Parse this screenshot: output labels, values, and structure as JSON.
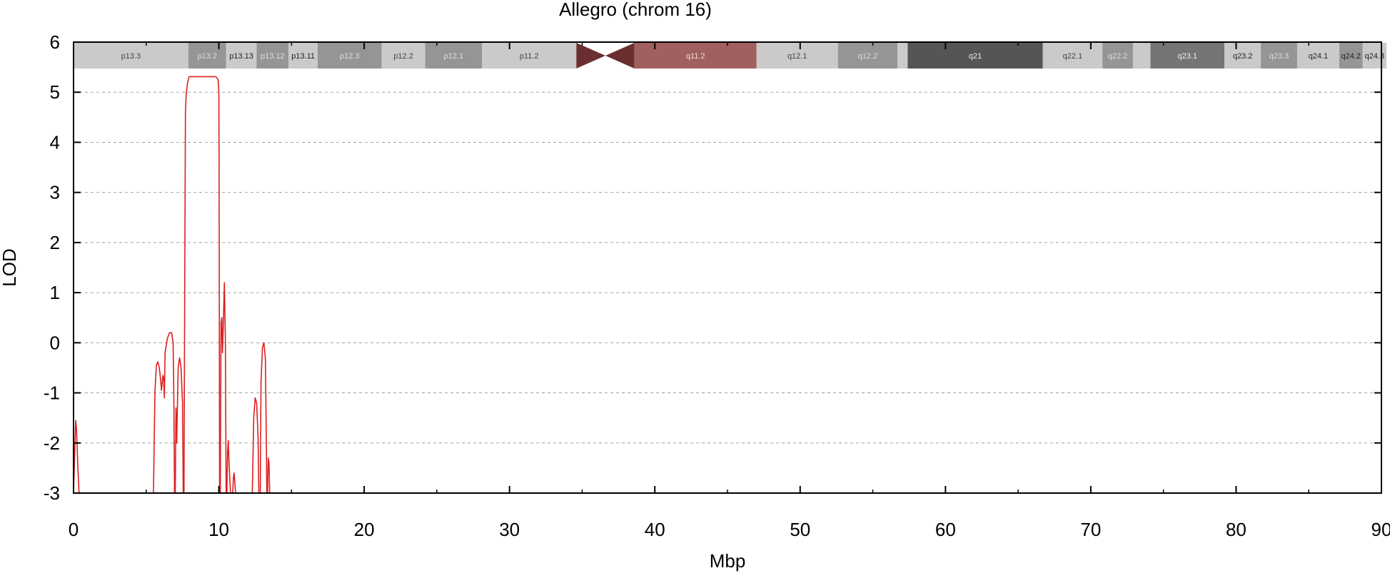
{
  "chart_data": {
    "type": "line",
    "title": "Allegro (chrom 16)",
    "xlabel": "Mbp",
    "ylabel": "LOD",
    "xlim": [
      0,
      90
    ],
    "ylim": [
      -3,
      6
    ],
    "xticks": [
      "0",
      "10",
      "20",
      "30",
      "40",
      "50",
      "60",
      "70",
      "80",
      "90"
    ],
    "yticks": [
      "-3",
      "-2",
      "-1",
      "0",
      "1",
      "2",
      "3",
      "4",
      "5",
      "6"
    ],
    "grid": "horizontal dashed",
    "series": [
      {
        "color": "#dd1f1f",
        "segments": [
          [
            [
              0.0,
              -3.0
            ],
            [
              0.08,
              -2.2
            ],
            [
              0.15,
              -1.55
            ],
            [
              0.2,
              -1.7
            ],
            [
              0.3,
              -2.5
            ],
            [
              0.38,
              -3.0
            ]
          ],
          [
            [
              5.5,
              -3.0
            ],
            [
              5.6,
              -1.0
            ],
            [
              5.7,
              -0.45
            ],
            [
              5.8,
              -0.38
            ],
            [
              5.9,
              -0.5
            ],
            [
              6.0,
              -0.75
            ],
            [
              6.05,
              -0.95
            ],
            [
              6.1,
              -0.8
            ],
            [
              6.15,
              -0.65
            ],
            [
              6.2,
              -0.7
            ],
            [
              6.25,
              -1.1
            ],
            [
              6.3,
              -0.2
            ],
            [
              6.45,
              0.08
            ],
            [
              6.6,
              0.2
            ],
            [
              6.75,
              0.2
            ],
            [
              6.85,
              0.0
            ],
            [
              6.9,
              -1.0
            ],
            [
              6.95,
              -3.0
            ]
          ],
          [
            [
              7.0,
              -3.0
            ],
            [
              7.05,
              -1.3
            ],
            [
              7.1,
              -2.0
            ],
            [
              7.2,
              -0.5
            ],
            [
              7.3,
              -0.3
            ],
            [
              7.4,
              -0.5
            ],
            [
              7.5,
              -1.2
            ],
            [
              7.55,
              -3.0
            ]
          ],
          [
            [
              7.6,
              -3.0
            ],
            [
              7.65,
              1.0
            ],
            [
              7.7,
              4.6
            ],
            [
              7.75,
              4.95
            ],
            [
              7.85,
              5.2
            ],
            [
              7.95,
              5.31
            ],
            [
              8.5,
              5.31
            ],
            [
              9.0,
              5.31
            ],
            [
              9.5,
              5.31
            ],
            [
              9.8,
              5.31
            ],
            [
              9.95,
              5.25
            ],
            [
              10.0,
              5.0
            ],
            [
              10.02,
              3.0
            ],
            [
              10.05,
              -3.0
            ]
          ],
          [
            [
              10.1,
              -3.0
            ],
            [
              10.15,
              0.4
            ],
            [
              10.2,
              0.5
            ],
            [
              10.25,
              -0.2
            ],
            [
              10.3,
              0.3
            ],
            [
              10.38,
              1.2
            ],
            [
              10.45,
              0.0
            ],
            [
              10.5,
              -3.0
            ]
          ],
          [
            [
              10.55,
              -3.0
            ],
            [
              10.6,
              -2.2
            ],
            [
              10.65,
              -1.95
            ],
            [
              10.7,
              -2.4
            ],
            [
              10.8,
              -3.0
            ]
          ],
          [
            [
              10.95,
              -3.0
            ],
            [
              11.0,
              -2.7
            ],
            [
              11.05,
              -2.6
            ],
            [
              11.1,
              -2.8
            ],
            [
              11.15,
              -3.0
            ]
          ],
          [
            [
              12.3,
              -3.0
            ],
            [
              12.4,
              -1.5
            ],
            [
              12.5,
              -1.1
            ],
            [
              12.6,
              -1.2
            ],
            [
              12.7,
              -1.9
            ],
            [
              12.75,
              -3.0
            ]
          ],
          [
            [
              12.85,
              -3.0
            ],
            [
              12.9,
              -0.8
            ],
            [
              13.0,
              -0.1
            ],
            [
              13.1,
              0.0
            ],
            [
              13.2,
              -0.3
            ],
            [
              13.25,
              -1.5
            ],
            [
              13.3,
              -3.0
            ]
          ],
          [
            [
              13.35,
              -3.0
            ],
            [
              13.4,
              -2.3
            ],
            [
              13.45,
              -2.4
            ],
            [
              13.5,
              -3.0
            ]
          ]
        ]
      }
    ]
  },
  "ideogram": {
    "p_bands": [
      {
        "label": "p13.3",
        "start": 0.0,
        "end": 7.9,
        "color": "#cacaca",
        "text": "#444444"
      },
      {
        "label": "p13.2",
        "start": 7.9,
        "end": 10.5,
        "color": "#959595",
        "text": "#dddddd"
      },
      {
        "label": "p13.13",
        "start": 10.5,
        "end": 12.6,
        "color": "#cacaca",
        "text": "#222222"
      },
      {
        "label": "p13.12",
        "start": 12.6,
        "end": 14.8,
        "color": "#959595",
        "text": "#dddddd"
      },
      {
        "label": "p13.11",
        "start": 14.8,
        "end": 16.8,
        "color": "#cacaca",
        "text": "#222222"
      },
      {
        "label": "p12.3",
        "start": 16.8,
        "end": 21.2,
        "color": "#959595",
        "text": "#dddddd"
      },
      {
        "label": "p12.2",
        "start": 21.2,
        "end": 24.2,
        "color": "#cacaca",
        "text": "#444444"
      },
      {
        "label": "p12.1",
        "start": 24.2,
        "end": 28.1,
        "color": "#959595",
        "text": "#dddddd"
      },
      {
        "label": "p11.2",
        "start": 28.1,
        "end": 34.6,
        "color": "#cacaca",
        "text": "#444444"
      }
    ],
    "centromere": {
      "start": 34.6,
      "mid": 36.6,
      "end": 38.6,
      "color": "#6b2e2e"
    },
    "q_bands": [
      {
        "label": "q11.2",
        "start": 38.6,
        "end": 47.0,
        "color": "#a06060",
        "text": "#f0dada"
      },
      {
        "label": "q12.1",
        "start": 47.0,
        "end": 52.6,
        "color": "#cacaca",
        "text": "#444444"
      },
      {
        "label": "q12.2",
        "start": 52.6,
        "end": 56.7,
        "color": "#959595",
        "text": "#dddddd"
      },
      {
        "label": "",
        "start": 56.7,
        "end": 57.4,
        "color": "#cacaca",
        "text": "#444444"
      },
      {
        "label": "q21",
        "start": 57.4,
        "end": 66.7,
        "color": "#555555",
        "text": "#eeeeee"
      },
      {
        "label": "q22.1",
        "start": 66.7,
        "end": 70.8,
        "color": "#cacaca",
        "text": "#444444"
      },
      {
        "label": "q22.2",
        "start": 70.8,
        "end": 72.9,
        "color": "#959595",
        "text": "#dddddd"
      },
      {
        "label": "",
        "start": 72.9,
        "end": 74.1,
        "color": "#cacaca",
        "text": "#444444"
      },
      {
        "label": "q23.1",
        "start": 74.1,
        "end": 79.2,
        "color": "#757575",
        "text": "#eeeeee"
      },
      {
        "label": "q23.2",
        "start": 79.2,
        "end": 81.7,
        "color": "#cacaca",
        "text": "#222222"
      },
      {
        "label": "q23.3",
        "start": 81.7,
        "end": 84.2,
        "color": "#959595",
        "text": "#dddddd"
      },
      {
        "label": "q24.1",
        "start": 84.2,
        "end": 87.1,
        "color": "#cacaca",
        "text": "#222222"
      },
      {
        "label": "q24.2",
        "start": 87.1,
        "end": 88.7,
        "color": "#959595",
        "text": "#222222"
      },
      {
        "label": "q24.3",
        "start": 88.7,
        "end": 90.35,
        "color": "#cacaca",
        "text": "#222222"
      }
    ]
  }
}
